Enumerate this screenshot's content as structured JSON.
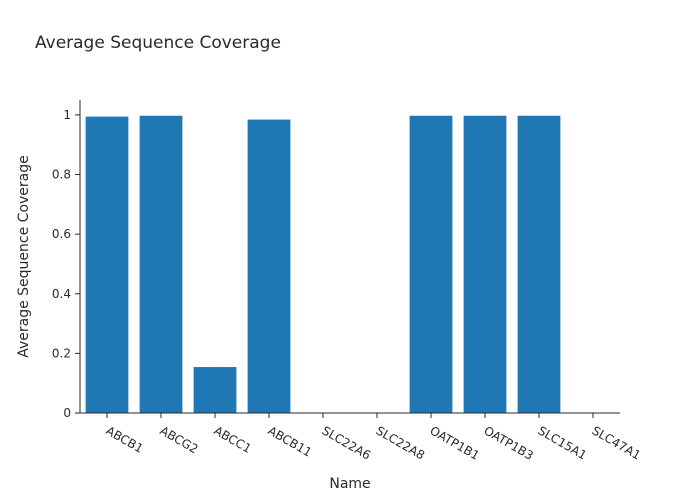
{
  "chart_data": {
    "type": "bar",
    "title": "Average Sequence Coverage",
    "xlabel": "Name",
    "ylabel": "Average Sequence Coverage",
    "categories": [
      "ABCB1",
      "ABCG2",
      "ABCC1",
      "ABCB11",
      "SLC22A6",
      "SLC22A8",
      "OATP1B1",
      "OATP1B3",
      "SLC15A1",
      "SLC47A1"
    ],
    "values": [
      0.995,
      0.998,
      0.155,
      0.985,
      0,
      0,
      0.998,
      0.998,
      0.998,
      0
    ],
    "ylim": [
      0,
      1.05
    ],
    "yticks": [
      0,
      0.2,
      0.4,
      0.6,
      0.8,
      1
    ],
    "ytick_labels": [
      "0",
      "0.2",
      "0.4",
      "0.6",
      "0.8",
      "1"
    ],
    "bar_color": "#1f77b4",
    "bar_edge_color": "#ffffff",
    "axis_color": "#2a2a2a",
    "grid": false,
    "legend": false
  }
}
